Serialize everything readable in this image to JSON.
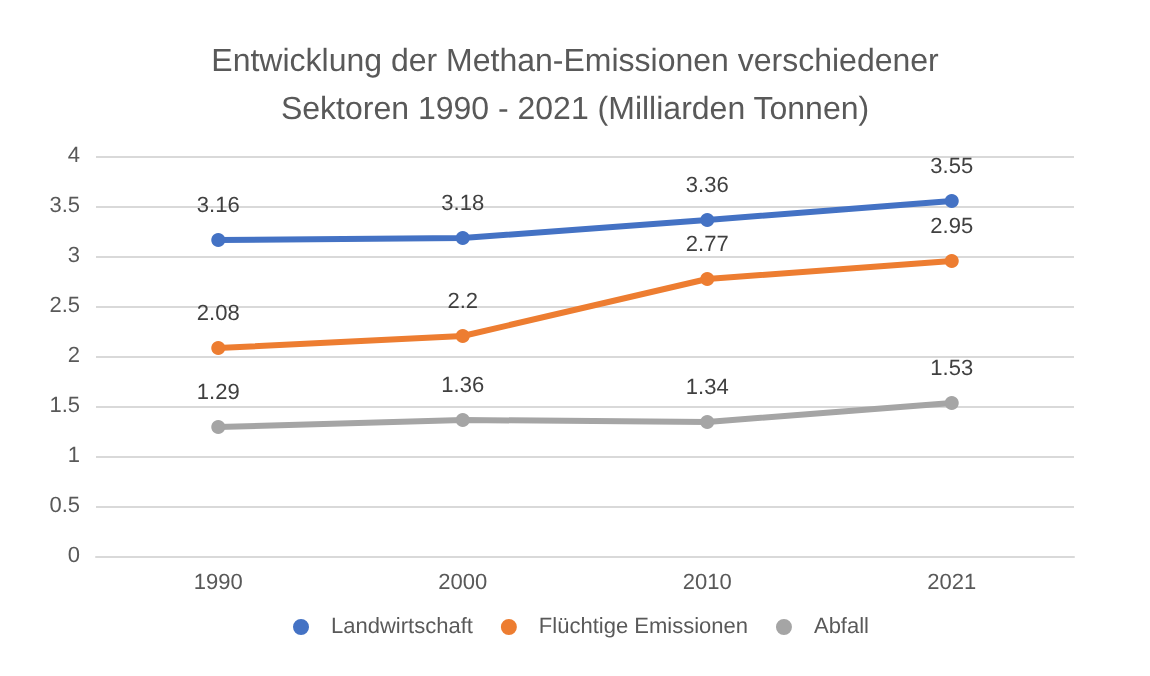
{
  "chart_data": {
    "type": "line",
    "title": "Entwicklung der Methan-Emissionen verschiedener Sektoren 1990 - 2021 (Milliarden Tonnen)",
    "categories": [
      "1990",
      "2000",
      "2010",
      "2021"
    ],
    "series": [
      {
        "name": "Landwirtschaft",
        "color": "#4472c4",
        "values": [
          3.16,
          3.18,
          3.36,
          3.55
        ]
      },
      {
        "name": "Flüchtige Emissionen",
        "color": "#ed7d31",
        "values": [
          2.08,
          2.2,
          2.77,
          2.95
        ]
      },
      {
        "name": "Abfall",
        "color": "#a5a5a5",
        "values": [
          1.29,
          1.36,
          1.34,
          1.53
        ]
      }
    ],
    "ylim": [
      0,
      4
    ],
    "yticks": [
      0,
      0.5,
      1,
      1.5,
      2,
      2.5,
      3,
      3.5,
      4
    ],
    "grid": "y",
    "legend": "bottom",
    "marker": "circle",
    "line_style": "solid",
    "data_labels": true
  }
}
